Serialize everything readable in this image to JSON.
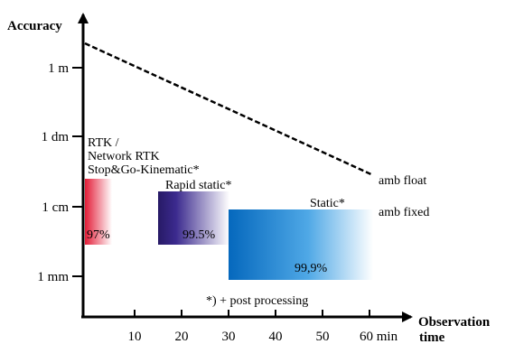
{
  "y_axis": {
    "title": "Accuracy",
    "ticks": [
      "1 m",
      "1 dm",
      "1 cm",
      "1 mm"
    ]
  },
  "x_axis": {
    "title_line1": "Observation",
    "title_line2": "time",
    "ticks": [
      "10",
      "20",
      "30",
      "40",
      "50"
    ],
    "last_tick": "60 min"
  },
  "methods": {
    "rtk": {
      "label_lines": [
        "RTK /",
        "Network RTK",
        "Stop&Go-Kinematic*"
      ],
      "percent": "97%",
      "color": "#e8283c"
    },
    "rapid_static": {
      "label": "Rapid static*",
      "percent": "99.5%",
      "color": "#2a1f6e"
    },
    "static": {
      "label": "Static*",
      "percent": "99,9%",
      "color": "#0a74c8"
    }
  },
  "lines": {
    "float_label": "amb float",
    "fixed_label": "amb fixed"
  },
  "footnote": "*) + post processing"
}
